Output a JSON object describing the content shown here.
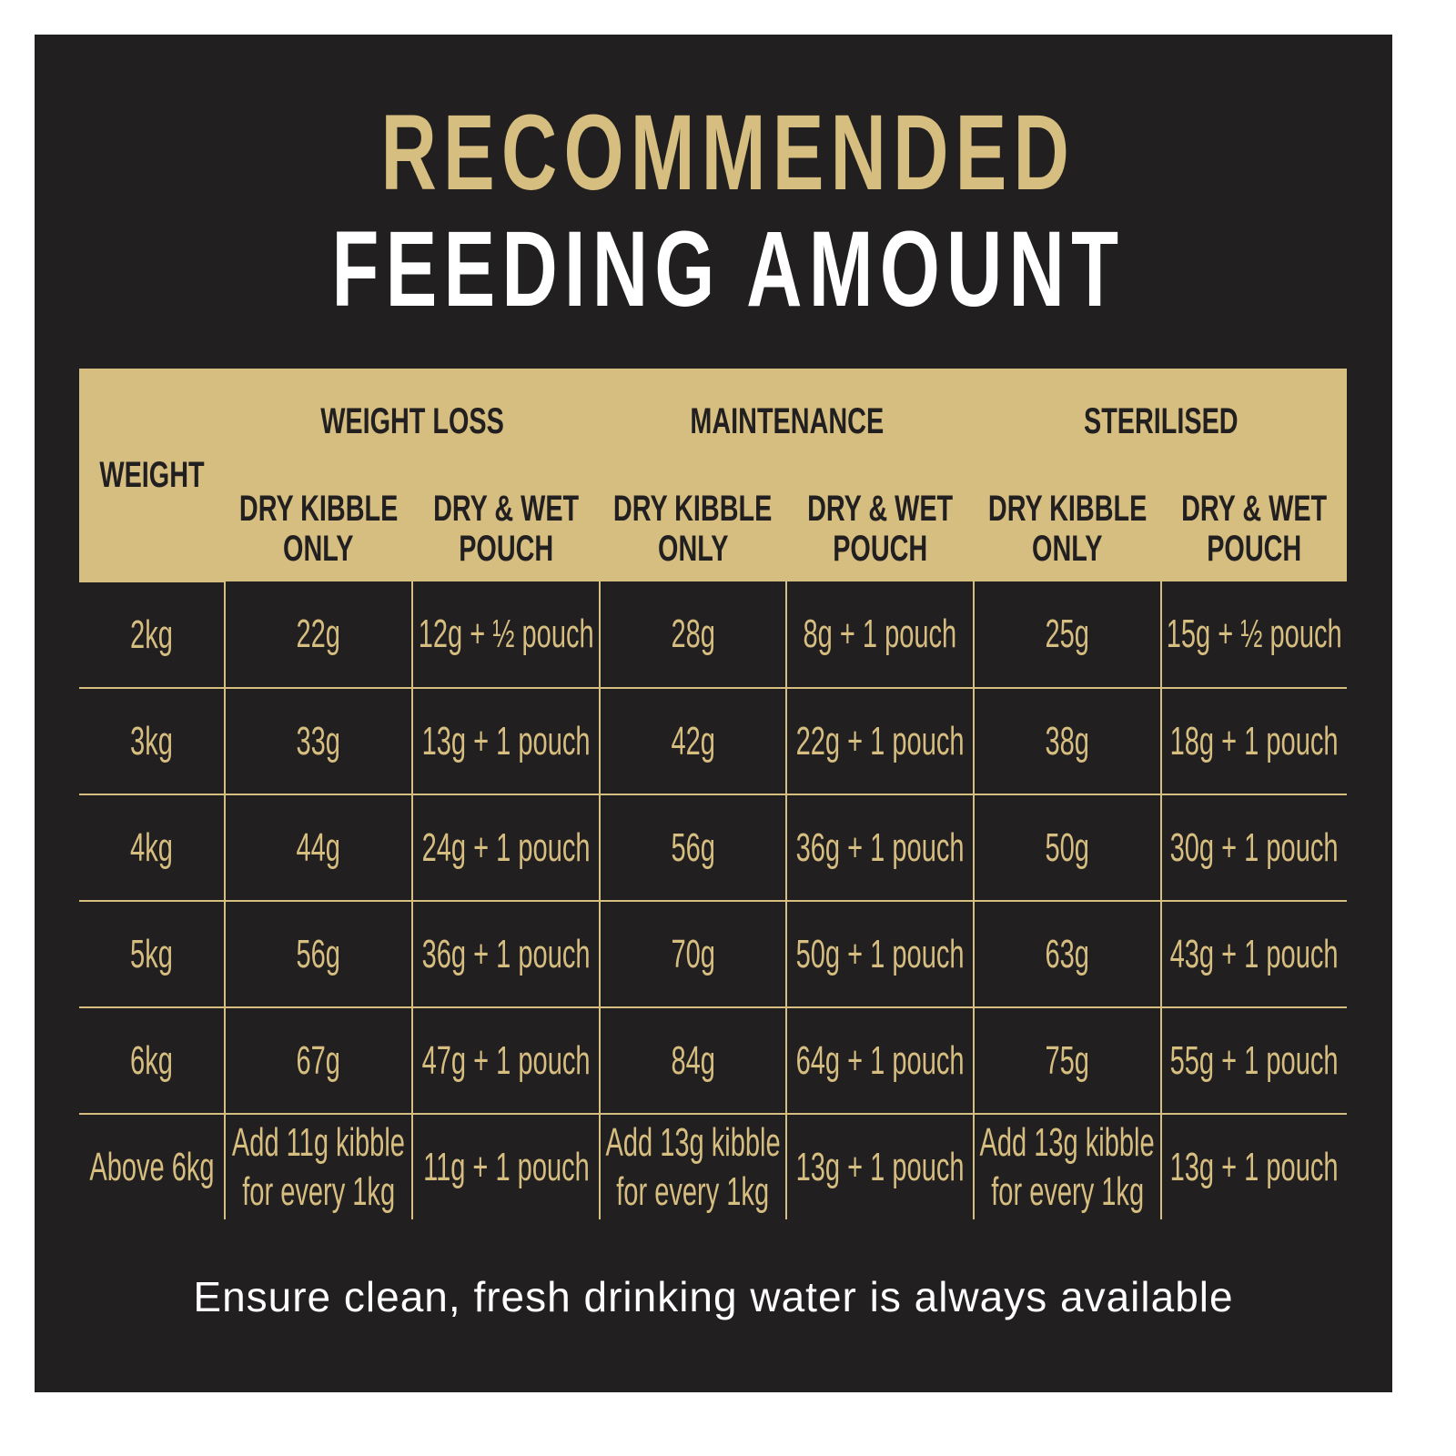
{
  "title": {
    "line1": "RECOMMENDED",
    "line2": "FEEDING AMOUNT"
  },
  "colors": {
    "background": "#221f20",
    "gold": "#d6bd80",
    "white": "#ffffff"
  },
  "table": {
    "weight_header": "WEIGHT",
    "groups": [
      "WEIGHT LOSS",
      "MAINTENANCE",
      "STERILISED"
    ],
    "subheaders": [
      [
        "DRY KIBBLE",
        "ONLY"
      ],
      [
        "DRY & WET",
        "POUCH"
      ],
      [
        "DRY KIBBLE",
        "ONLY"
      ],
      [
        "DRY & WET",
        "POUCH"
      ],
      [
        "DRY KIBBLE",
        "ONLY"
      ],
      [
        "DRY & WET",
        "POUCH"
      ]
    ],
    "rows": [
      [
        "2kg",
        "22g",
        "12g + ½ pouch",
        "28g",
        "8g + 1 pouch",
        "25g",
        "15g + ½ pouch"
      ],
      [
        "3kg",
        "33g",
        "13g + 1 pouch",
        "42g",
        "22g + 1 pouch",
        "38g",
        "18g + 1 pouch"
      ],
      [
        "4kg",
        "44g",
        "24g + 1 pouch",
        "56g",
        "36g + 1 pouch",
        "50g",
        "30g + 1 pouch"
      ],
      [
        "5kg",
        "56g",
        "36g + 1 pouch",
        "70g",
        "50g + 1 pouch",
        "63g",
        "43g + 1 pouch"
      ],
      [
        "6kg",
        "67g",
        "47g + 1 pouch",
        "84g",
        "64g + 1 pouch",
        "75g",
        "55g + 1 pouch"
      ]
    ],
    "last_row": {
      "weight": "Above 6kg",
      "cells": [
        [
          "Add 11g kibble",
          "for every 1kg"
        ],
        [
          "11g + 1 pouch"
        ],
        [
          "Add 13g kibble",
          "for every 1kg"
        ],
        [
          "13g + 1 pouch"
        ],
        [
          "Add 13g kibble",
          "for every 1kg"
        ],
        [
          "13g + 1 pouch"
        ]
      ]
    }
  },
  "footer": "Ensure clean, fresh drinking water is always available"
}
